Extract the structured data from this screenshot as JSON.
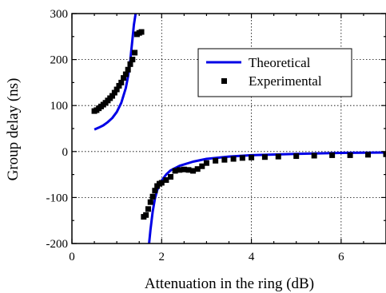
{
  "chart_data": {
    "type": "line",
    "xlabel": "Attenuation in the ring (dB)",
    "ylabel": "Group delay (ns)",
    "xlim": [
      0,
      7
    ],
    "ylim": [
      -200,
      300
    ],
    "x_ticks": [
      0,
      2,
      4,
      6
    ],
    "y_ticks": [
      -200,
      -100,
      0,
      100,
      200,
      300
    ],
    "x_tick_labels": [
      "0",
      "2",
      "4",
      "6"
    ],
    "y_tick_labels": [
      "-200",
      "-100",
      "0",
      "100",
      "200",
      "300"
    ],
    "grid": true,
    "legend_position": "top-right",
    "series": [
      {
        "name": "Theoretical",
        "style": "line",
        "color": "#0000e6",
        "segments": [
          {
            "x": [
              0.5,
              0.6,
              0.7,
              0.8,
              0.9,
              1.0,
              1.1,
              1.2,
              1.25,
              1.3,
              1.35,
              1.38,
              1.42,
              1.45
            ],
            "y": [
              48,
              52,
              57,
              64,
              73,
              86,
              106,
              138,
              163,
              198,
              245,
              275,
              300,
              320
            ]
          },
          {
            "x": [
              1.7,
              1.75,
              1.8,
              1.85,
              1.9,
              1.95,
              2.0,
              2.1,
              2.2,
              2.4,
              2.7,
              3.0,
              3.5,
              4.0,
              5.0,
              6.0,
              7.0
            ],
            "y": [
              -220,
              -170,
              -130,
              -102,
              -84,
              -72,
              -63,
              -50,
              -41,
              -31,
              -22,
              -16,
              -11,
              -8,
              -5,
              -3,
              -2
            ]
          }
        ]
      },
      {
        "name": "Experimental",
        "style": "marker",
        "marker": "square",
        "color": "#000000",
        "segments": [
          {
            "x": [
              0.5,
              0.55,
              0.6,
              0.65,
              0.7,
              0.75,
              0.8,
              0.85,
              0.9,
              0.95,
              1.0,
              1.05,
              1.1,
              1.15,
              1.2,
              1.25,
              1.3,
              1.35,
              1.4,
              1.45,
              1.5,
              1.55
            ],
            "y": [
              88,
              90,
              94,
              98,
              102,
              106,
              111,
              116,
              121,
              128,
              135,
              143,
              150,
              160,
              168,
              178,
              190,
              200,
              215,
              255,
              258,
              260
            ]
          },
          {
            "x": [
              1.6,
              1.65,
              1.7,
              1.75,
              1.8,
              1.85,
              1.9,
              1.95,
              2.0,
              2.1,
              2.2,
              2.3,
              2.4,
              2.5,
              2.6,
              2.7,
              2.8,
              2.9,
              3.0,
              3.2,
              3.4,
              3.6,
              3.8,
              4.0,
              4.3,
              4.6,
              5.0,
              5.4,
              5.8,
              6.2,
              6.6,
              7.0
            ],
            "y": [
              -142,
              -138,
              -125,
              -110,
              -98,
              -85,
              -75,
              -70,
              -68,
              -62,
              -55,
              -42,
              -40,
              -39,
              -40,
              -42,
              -38,
              -32,
              -25,
              -20,
              -18,
              -16,
              -14,
              -13,
              -12,
              -11,
              -10,
              -9,
              -8,
              -8,
              -7,
              -6
            ]
          }
        ]
      }
    ]
  }
}
